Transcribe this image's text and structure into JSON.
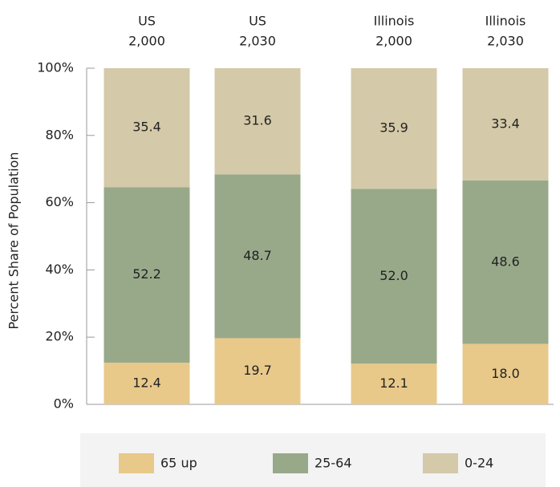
{
  "chart_data": {
    "type": "stacked_bar",
    "categories": [
      [
        "US",
        "2,000"
      ],
      [
        "US",
        "2,030"
      ],
      [
        "Illinois",
        "2,000"
      ],
      [
        "Illinois",
        "2,030"
      ]
    ],
    "y_label": "Percent Share of Population",
    "series": [
      {
        "name": "65 up",
        "color": "#e8c98a",
        "values": [
          12.4,
          19.7,
          12.1,
          18
        ],
        "value_labels": [
          "12.4",
          "19.7",
          "12.1",
          "18.0"
        ]
      },
      {
        "name": "25-64",
        "color": "#98a98a",
        "values": [
          52.2,
          48.7,
          52,
          48.6
        ],
        "value_labels": [
          "52.2",
          "48.7",
          "52.0",
          "48.6"
        ]
      },
      {
        "name": "0-24",
        "color": "#d4c9a8",
        "values": [
          35.4,
          31.6,
          35.9,
          33.4
        ],
        "value_labels": [
          "35.4",
          "31.6",
          "35.9",
          "33.4"
        ]
      }
    ],
    "ylim": [
      0,
      100
    ],
    "yticks": [
      {
        "value": 0,
        "label": "0%"
      },
      {
        "value": 20,
        "label": "20%"
      },
      {
        "value": 40,
        "label": "40%"
      },
      {
        "value": 60,
        "label": "60%"
      },
      {
        "value": 80,
        "label": "80%"
      },
      {
        "value": 100,
        "label": "100%"
      }
    ]
  }
}
